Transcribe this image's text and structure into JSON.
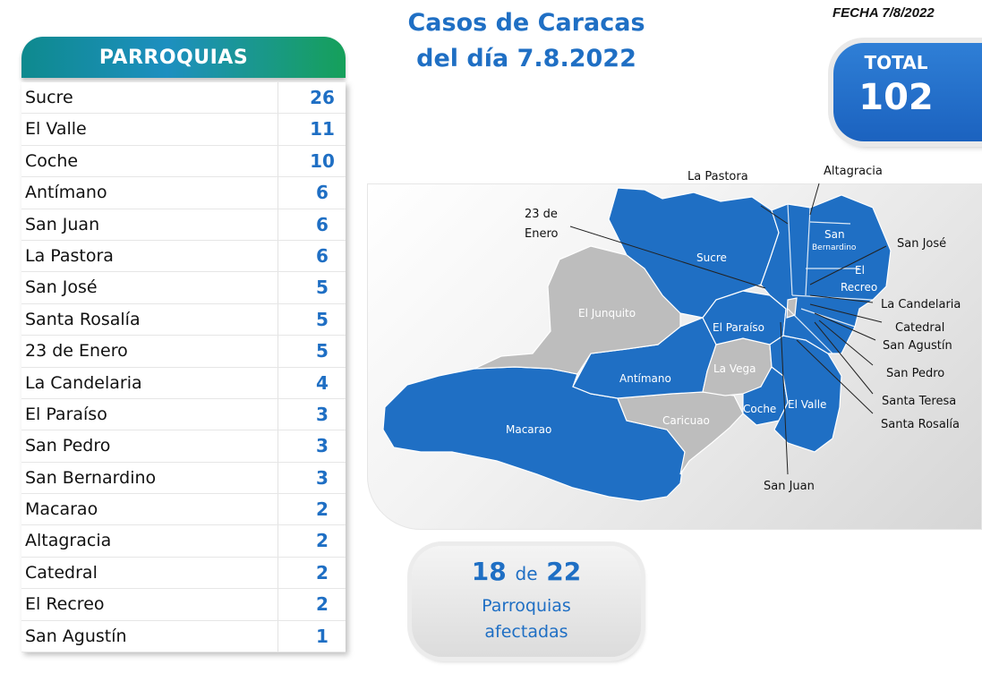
{
  "date_label": "FECHA 7/8/2022",
  "title_line1": "Casos de Caracas",
  "title_line2": "del día 7.8.2022",
  "table_header": "PARROQUIAS",
  "parishes": [
    {
      "name": "Sucre",
      "cases": "26"
    },
    {
      "name": "El Valle",
      "cases": "11"
    },
    {
      "name": "Coche",
      "cases": "10"
    },
    {
      "name": "Antímano",
      "cases": "6"
    },
    {
      "name": "San Juan",
      "cases": "6"
    },
    {
      "name": "La Pastora",
      "cases": "6"
    },
    {
      "name": "San José",
      "cases": "5"
    },
    {
      "name": "Santa Rosalía",
      "cases": "5"
    },
    {
      "name": "23 de Enero",
      "cases": "5"
    },
    {
      "name": "La Candelaria",
      "cases": "4"
    },
    {
      "name": "El Paraíso",
      "cases": "3"
    },
    {
      "name": "San Pedro",
      "cases": "3"
    },
    {
      "name": "San Bernardino",
      "cases": "3"
    },
    {
      "name": "Macarao",
      "cases": "2"
    },
    {
      "name": "Altagracia",
      "cases": "2"
    },
    {
      "name": "Catedral",
      "cases": "2"
    },
    {
      "name": "El Recreo",
      "cases": "2"
    },
    {
      "name": "San Agustín",
      "cases": "1"
    }
  ],
  "total": {
    "label": "TOTAL",
    "value": "102"
  },
  "affected": {
    "count": "18",
    "connector": "de",
    "of": "22",
    "line2": "Parroquias",
    "line3": "afectadas"
  },
  "map": {
    "colors": {
      "affected": "#1f6fc4",
      "unaffected": "#bdbdbd"
    },
    "inner_labels": {
      "sucre": "Sucre",
      "el_junquito": "El Junquito",
      "el_paraiso": "El Paraíso",
      "antimano": "Antímano",
      "la_vega": "La Vega",
      "caricuao": "Caricuao",
      "macarao": "Macarao",
      "coche": "Coche",
      "el_valle": "El Valle",
      "san_bernardino_1": "San",
      "san_bernardino_2": "Bernardino",
      "el_recreo_1": "El",
      "el_recreo_2": "Recreo"
    },
    "callouts": {
      "la_pastora": "La Pastora",
      "altagracia": "Altagracia",
      "enero_1": "23 de",
      "enero_2": "Enero",
      "san_jose": "San José",
      "la_candelaria": "La Candelaria",
      "catedral": "Catedral",
      "san_agustin": "San Agustín",
      "san_pedro": "San Pedro",
      "santa_teresa": "Santa Teresa",
      "santa_rosalia": "Santa Rosalía",
      "san_juan": "San Juan"
    }
  }
}
